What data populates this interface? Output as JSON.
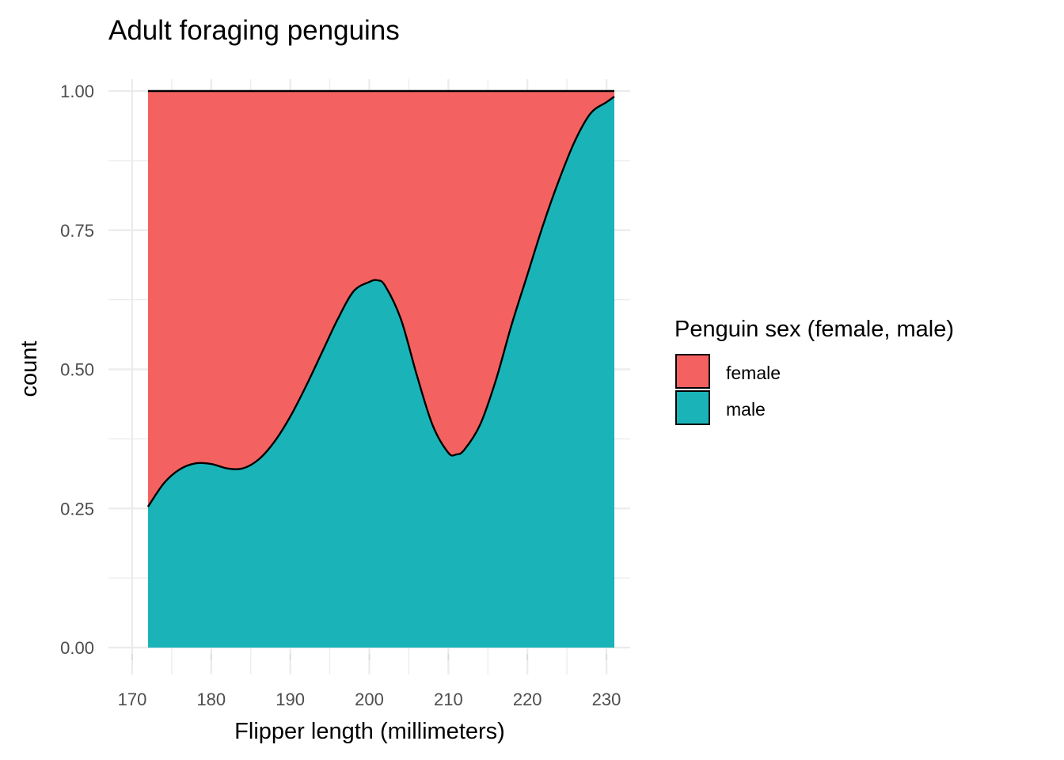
{
  "chart_data": {
    "type": "area",
    "stacked": "fill",
    "title": "Adult foraging penguins",
    "xlabel": "Flipper length (millimeters)",
    "ylabel": "count",
    "xlim": [
      167,
      233
    ],
    "ylim": [
      0,
      1
    ],
    "x_ticks": [
      "170",
      "180",
      "190",
      "200",
      "210",
      "220",
      "230"
    ],
    "y_ticks": [
      "0.00",
      "0.25",
      "0.50",
      "0.75",
      "1.00"
    ],
    "grid": true,
    "legend": {
      "title": "Penguin sex (female, male)",
      "position": "right",
      "entries": [
        "female",
        "male"
      ]
    },
    "x": [
      172,
      174,
      176,
      178,
      180,
      182,
      184,
      186,
      188,
      190,
      192,
      194,
      196,
      198,
      200,
      201,
      202,
      204,
      206,
      208,
      210,
      211,
      212,
      214,
      216,
      218,
      220,
      222,
      224,
      226,
      228,
      230,
      231
    ],
    "series": [
      {
        "name": "female",
        "color": "#F8766D",
        "values": [
          0.747,
          0.705,
          0.68,
          0.669,
          0.67,
          0.678,
          0.678,
          0.662,
          0.63,
          0.585,
          0.53,
          0.47,
          0.41,
          0.36,
          0.343,
          0.34,
          0.35,
          0.41,
          0.51,
          0.6,
          0.65,
          0.653,
          0.645,
          0.6,
          0.52,
          0.42,
          0.33,
          0.24,
          0.16,
          0.09,
          0.04,
          0.02,
          0.01
        ]
      },
      {
        "name": "male",
        "color": "#00BFC4",
        "values": [
          0.253,
          0.295,
          0.32,
          0.331,
          0.33,
          0.322,
          0.322,
          0.338,
          0.37,
          0.415,
          0.47,
          0.53,
          0.59,
          0.64,
          0.657,
          0.66,
          0.65,
          0.59,
          0.49,
          0.4,
          0.35,
          0.347,
          0.355,
          0.4,
          0.48,
          0.58,
          0.67,
          0.76,
          0.84,
          0.91,
          0.96,
          0.98,
          0.99
        ]
      }
    ]
  },
  "colors": {
    "female": "#F36260",
    "male": "#1AB4B8",
    "grid": "#ebebeb",
    "outline": "#000000"
  }
}
